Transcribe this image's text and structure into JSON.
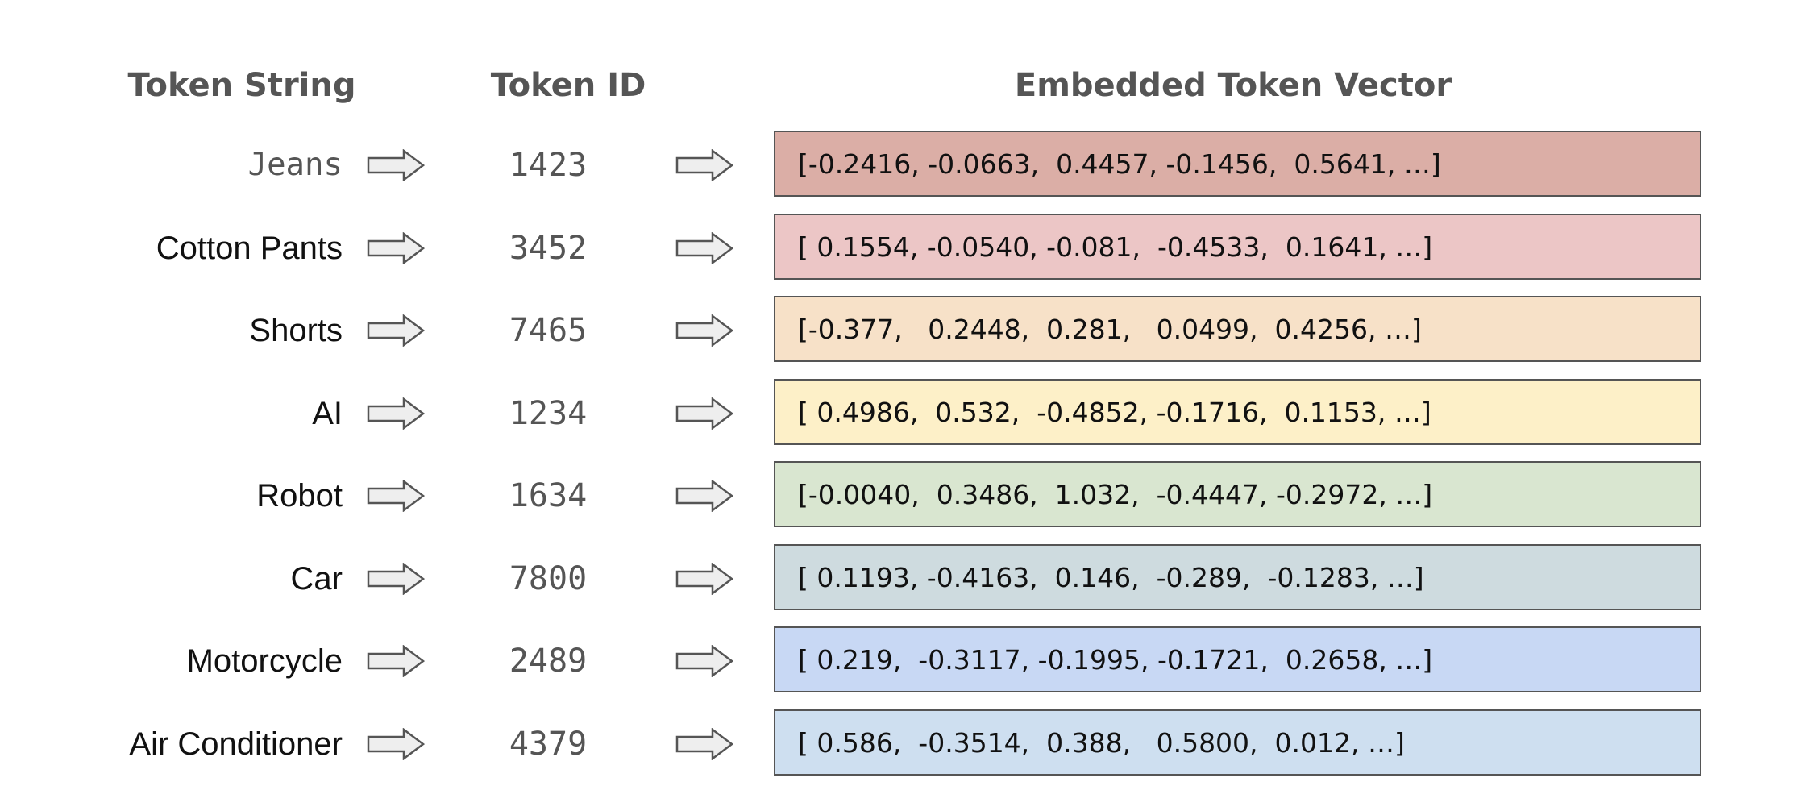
{
  "headers": {
    "token_string": "Token String",
    "token_id": "Token ID",
    "embedded_vector": "Embedded Token Vector"
  },
  "rows": [
    {
      "token": "Jeans",
      "id": "1423",
      "vector": "[-0.2416, -0.0663,  0.4457, -0.1456,  0.5641, …]",
      "color": "#dbaea6"
    },
    {
      "token": "Cotton Pants",
      "id": "3452",
      "vector": "[ 0.1554, -0.0540, -0.081,  -0.4533,  0.1641, …]",
      "color": "#ecc6c6"
    },
    {
      "token": "Shorts",
      "id": "7465",
      "vector": "[-0.377,   0.2448,  0.281,   0.0499,  0.4256, …]",
      "color": "#f7e1c8"
    },
    {
      "token": "AI",
      "id": "1234",
      "vector": "[ 0.4986,  0.532,  -0.4852, -0.1716,  0.1153, …]",
      "color": "#fdf0c8"
    },
    {
      "token": "Robot",
      "id": "1634",
      "vector": "[-0.0040,  0.3486,  1.032,  -0.4447, -0.2972, …]",
      "color": "#d9e6d0"
    },
    {
      "token": "Car",
      "id": "7800",
      "vector": "[ 0.1193, -0.4163,  0.146,  -0.289,  -0.1283, …]",
      "color": "#cedbdf"
    },
    {
      "token": "Motorcycle",
      "id": "2489",
      "vector": "[ 0.219,  -0.3117, -0.1995, -0.1721,  0.2658, …]",
      "color": "#c8d8f4"
    },
    {
      "token": "Air Conditioner",
      "id": "4379",
      "vector": "[ 0.586,  -0.3514,  0.388,   0.5800,  0.012, …]",
      "color": "#cedff0"
    }
  ],
  "icons": {
    "arrow": "right-arrow-icon"
  },
  "colors": {
    "arrow_fill": "#eeeeee",
    "arrow_stroke": "#555555",
    "box_border": "#555555",
    "header_text": "#555555"
  }
}
